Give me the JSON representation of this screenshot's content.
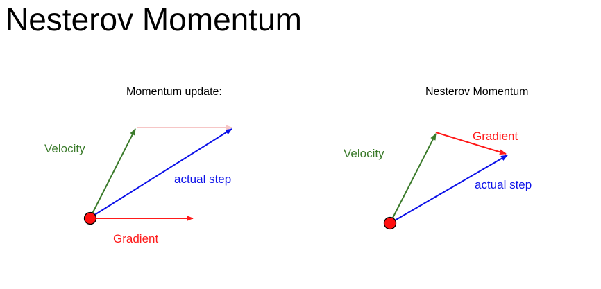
{
  "title": "Nesterov Momentum",
  "colors": {
    "velocity": "#3a7a2a",
    "actual_step": "#0b10e8",
    "gradient": "#ff1a1a",
    "gradient_faint": "#f6c6c6",
    "point_fill": "#ff1010"
  },
  "momentum_panel": {
    "title": "Momentum update:",
    "velocity_label": "Velocity",
    "actual_step_label": "actual step",
    "gradient_label": "Gradient"
  },
  "nesterov_panel": {
    "title": "Nesterov Momentum",
    "velocity_label": "Velocity",
    "gradient_label": "Gradient",
    "actual_step_label": "actual step"
  }
}
